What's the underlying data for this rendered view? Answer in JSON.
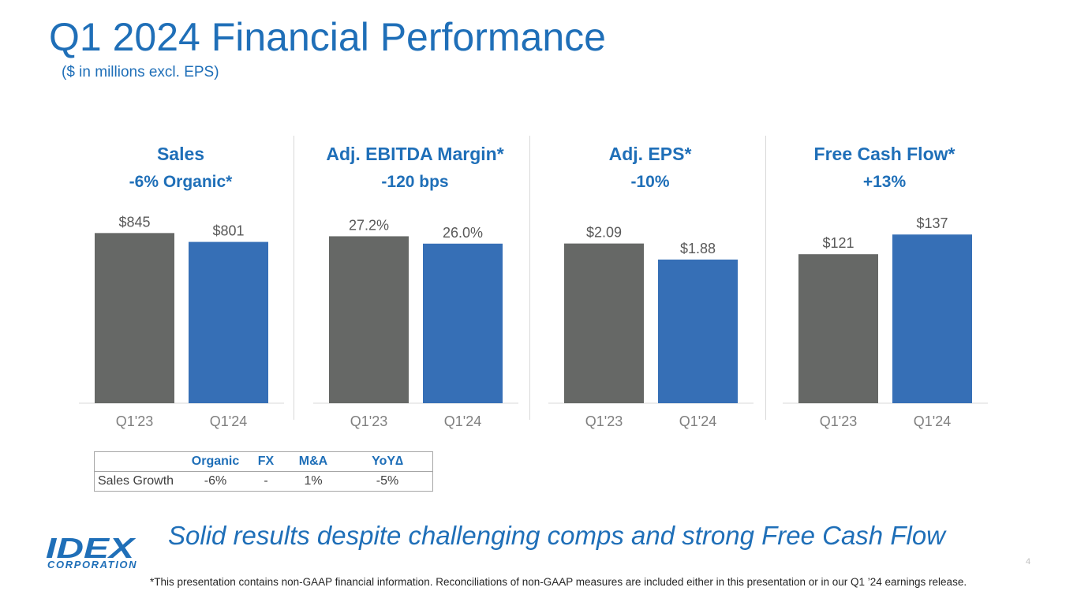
{
  "header": {
    "title": "Q1 2024 Financial Performance",
    "subtitle": "($ in millions excl. EPS)"
  },
  "colors": {
    "brand": "#1f6fb8",
    "prior_bar": "#666866",
    "current_bar": "#366fb6"
  },
  "chart_data": [
    {
      "type": "bar",
      "title": "Sales",
      "subtitle": "-6% Organic*",
      "categories": [
        "Q1'23",
        "Q1'24"
      ],
      "values": [
        845,
        801
      ],
      "value_labels": [
        "$845",
        "$801"
      ],
      "ylim": [
        0,
        960
      ]
    },
    {
      "type": "bar",
      "title": "Adj. EBITDA Margin*",
      "subtitle": "-120 bps",
      "categories": [
        "Q1'23",
        "Q1'24"
      ],
      "values": [
        27.2,
        26.0
      ],
      "value_labels": [
        "27.2%",
        "26.0%"
      ],
      "ylim": [
        0,
        31.5
      ]
    },
    {
      "type": "bar",
      "title": "Adj. EPS*",
      "subtitle": "-10%",
      "categories": [
        "Q1'23",
        "Q1'24"
      ],
      "values": [
        2.09,
        1.88
      ],
      "value_labels": [
        "$2.09",
        "$1.88"
      ],
      "ylim": [
        0,
        2.53
      ]
    },
    {
      "type": "bar",
      "title": "Free Cash Flow*",
      "subtitle": "+13%",
      "categories": [
        "Q1'23",
        "Q1'24"
      ],
      "values": [
        121,
        137
      ],
      "value_labels": [
        "$121",
        "$137"
      ],
      "ylim": [
        0,
        157
      ]
    }
  ],
  "growth_table": {
    "headers": [
      "",
      "Organic",
      "FX",
      "M&A",
      "YoY∆"
    ],
    "row": [
      "Sales Growth",
      "-6%",
      "-",
      "1%",
      "-5%"
    ]
  },
  "tagline": "Solid results despite challenging comps and strong Free Cash Flow",
  "logo": {
    "name": "IDEX",
    "corp_text": "CORPORATION"
  },
  "page_number": "4",
  "footnote": "*This presentation contains non-GAAP financial information. Reconciliations of non-GAAP measures are included either in this presentation or in our Q1 ’24 earnings release."
}
